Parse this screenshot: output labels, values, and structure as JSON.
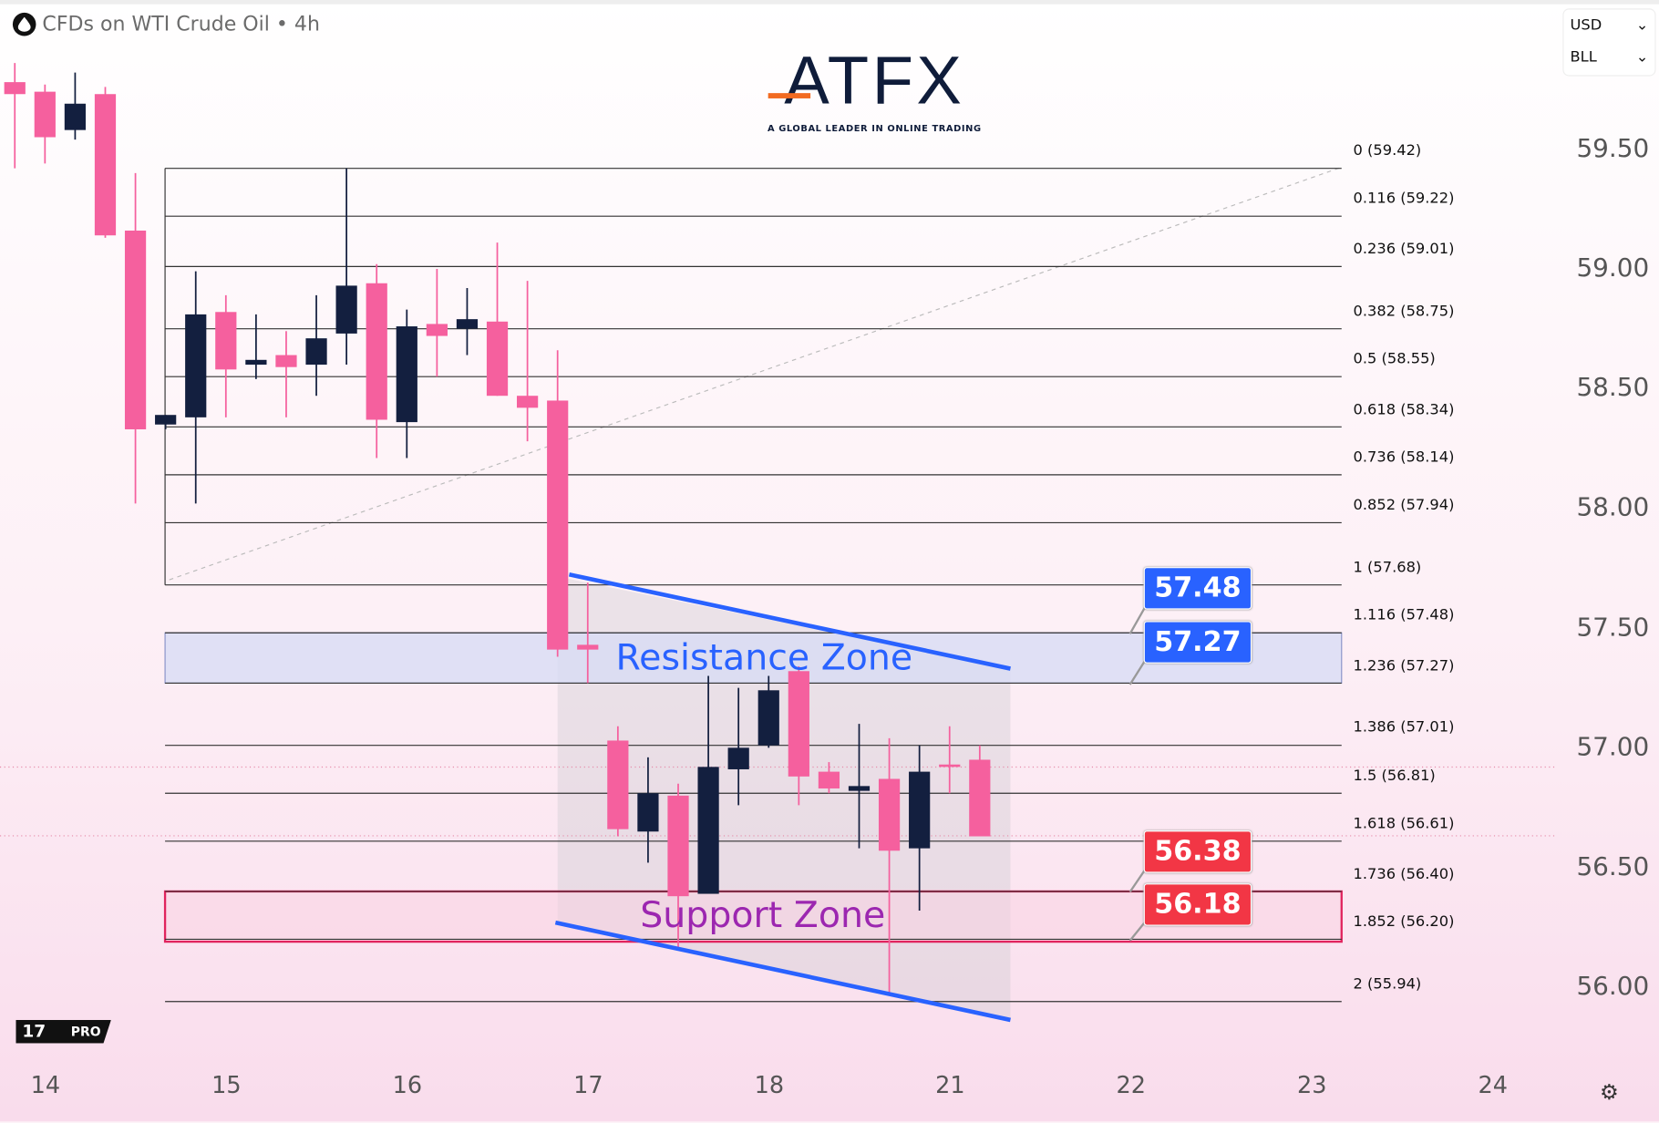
{
  "header": {
    "title": "CFDs on WTI Crude Oil • 4h",
    "icon": "oil-drop-icon"
  },
  "selectors": {
    "currency": "USD",
    "unit": "BLL"
  },
  "logo": {
    "word": "ATFX",
    "tagline": "A GLOBAL LEADER IN ONLINE TRADING"
  },
  "price_axis": [
    "59.50",
    "59.00",
    "58.50",
    "58.00",
    "57.50",
    "57.00",
    "56.50",
    "56.00"
  ],
  "date_axis": [
    "14",
    "15",
    "16",
    "17",
    "18",
    "21",
    "22",
    "23",
    "24"
  ],
  "fib_levels": [
    {
      "label": "0 (59.42)",
      "price": 59.42
    },
    {
      "label": "0.116 (59.22)",
      "price": 59.22
    },
    {
      "label": "0.236 (59.01)",
      "price": 59.01
    },
    {
      "label": "0.382 (58.75)",
      "price": 58.75
    },
    {
      "label": "0.5 (58.55)",
      "price": 58.55
    },
    {
      "label": "0.618 (58.34)",
      "price": 58.34
    },
    {
      "label": "0.736 (58.14)",
      "price": 58.14
    },
    {
      "label": "0.852 (57.94)",
      "price": 57.94
    },
    {
      "label": "1 (57.68)",
      "price": 57.68
    },
    {
      "label": "1.116 (57.48)",
      "price": 57.48
    },
    {
      "label": "1.236 (57.27)",
      "price": 57.27
    },
    {
      "label": "1.386 (57.01)",
      "price": 57.01
    },
    {
      "label": "1.5 (56.81)",
      "price": 56.81
    },
    {
      "label": "1.618 (56.61)",
      "price": 56.61
    },
    {
      "label": "1.736 (56.40)",
      "price": 56.4
    },
    {
      "label": "1.852 (56.20)",
      "price": 56.2
    },
    {
      "label": "2 (55.94)",
      "price": 55.94
    }
  ],
  "zones": {
    "resistance": {
      "label": "Resistance Zone",
      "top": 57.48,
      "bottom": 57.27
    },
    "support": {
      "label": "Support Zone",
      "top": 56.4,
      "bottom": 56.19
    }
  },
  "price_tags": [
    {
      "text": "57.48",
      "color": "#2962ff"
    },
    {
      "text": "57.27",
      "color": "#2962ff"
    },
    {
      "text": "56.38",
      "color": "#f23645"
    },
    {
      "text": "56.18",
      "color": "#f23645"
    }
  ],
  "colors": {
    "up": "#131f3f",
    "down": "#f5609e",
    "channel": "#2962ff",
    "resistance_fill": "#d8dcf5",
    "support_border": "#e0245e"
  },
  "chart_data": {
    "type": "candlestick",
    "timeframe": "4h",
    "ylim": [
      55.8,
      59.9
    ],
    "candles": [
      [
        59.78,
        59.86,
        59.42,
        59.73
      ],
      [
        59.74,
        59.77,
        59.44,
        59.55
      ],
      [
        59.58,
        59.82,
        59.54,
        59.69
      ],
      [
        59.73,
        59.76,
        59.13,
        59.14
      ],
      [
        59.16,
        59.4,
        58.02,
        58.33
      ],
      [
        58.35,
        58.39,
        58.33,
        58.39
      ],
      [
        58.38,
        58.99,
        58.02,
        58.81
      ],
      [
        58.82,
        58.89,
        58.38,
        58.58
      ],
      [
        58.6,
        58.81,
        58.54,
        58.62
      ],
      [
        58.64,
        58.74,
        58.38,
        58.59
      ],
      [
        58.6,
        58.89,
        58.47,
        58.71
      ],
      [
        58.73,
        59.42,
        58.6,
        58.93
      ],
      [
        58.94,
        59.02,
        58.21,
        58.37
      ],
      [
        58.36,
        58.83,
        58.21,
        58.76
      ],
      [
        58.77,
        59.0,
        58.55,
        58.72
      ],
      [
        58.75,
        58.92,
        58.64,
        58.79
      ],
      [
        58.78,
        59.11,
        58.47,
        58.47
      ],
      [
        58.47,
        58.95,
        58.28,
        58.42
      ],
      [
        58.45,
        58.66,
        57.38,
        57.41
      ],
      [
        57.43,
        57.69,
        57.27,
        57.41
      ],
      [
        57.03,
        57.09,
        56.63,
        56.66
      ],
      [
        56.65,
        56.96,
        56.52,
        56.81
      ],
      [
        56.8,
        56.85,
        56.16,
        56.38
      ],
      [
        56.39,
        57.3,
        56.39,
        56.92
      ],
      [
        56.91,
        57.25,
        56.76,
        57.0
      ],
      [
        57.01,
        57.3,
        57.0,
        57.24
      ],
      [
        57.32,
        57.34,
        56.76,
        56.88
      ],
      [
        56.9,
        56.94,
        56.81,
        56.83
      ],
      [
        56.82,
        57.1,
        56.58,
        56.84
      ],
      [
        56.87,
        57.04,
        55.97,
        56.57
      ],
      [
        56.58,
        57.01,
        56.32,
        56.9
      ],
      [
        56.93,
        57.09,
        56.81,
        56.92
      ],
      [
        56.95,
        57.01,
        56.63,
        56.63
      ]
    ],
    "candle_format": [
      "open",
      "high",
      "low",
      "close"
    ]
  }
}
